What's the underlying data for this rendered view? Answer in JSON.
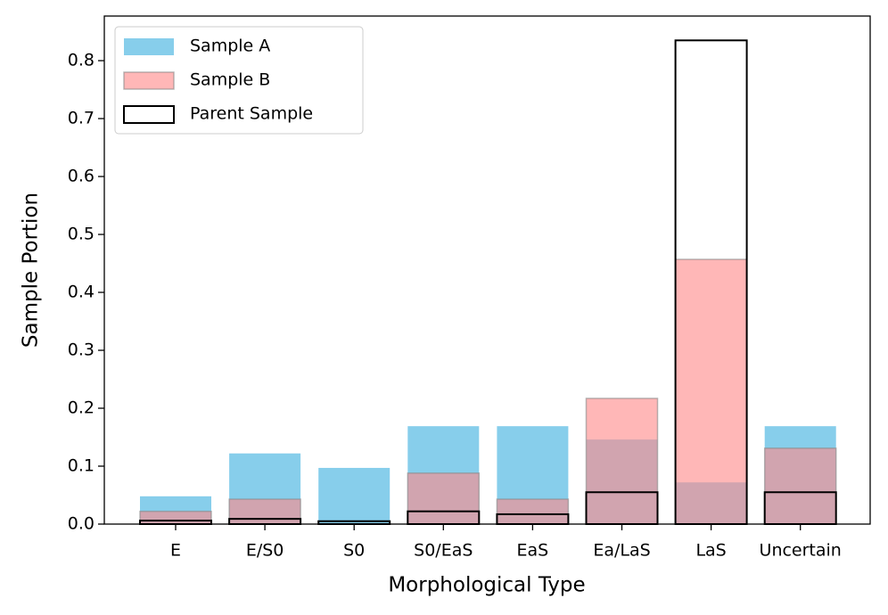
{
  "chart_data": {
    "type": "bar",
    "x_label": "Morphological Type",
    "y_label": "Sample Portion",
    "categories": [
      "E",
      "E/S0",
      "S0",
      "S0/EaS",
      "EaS",
      "Ea/LaS",
      "LaS",
      "Uncertain"
    ],
    "series": [
      {
        "name": "Sample A",
        "color": "#87ceeb",
        "style": "filled",
        "values": [
          0.048,
          0.122,
          0.097,
          0.169,
          0.169,
          0.146,
          0.072,
          0.169
        ]
      },
      {
        "name": "Sample B",
        "color": "#ff8a8a",
        "style": "filled",
        "values": [
          0.022,
          0.043,
          0,
          0.088,
          0.043,
          0.217,
          0.457,
          0.131
        ]
      },
      {
        "name": "Parent Sample",
        "color": "#000000",
        "style": "outline",
        "values": [
          0.006,
          0.009,
          0.005,
          0.022,
          0.017,
          0.055,
          0.835,
          0.055
        ]
      }
    ],
    "ylim": [
      0,
      0.877
    ],
    "yticks": [
      {
        "value": 0,
        "label": "0.0"
      },
      0.1,
      0.2,
      0.3,
      0.4,
      0.5,
      0.6,
      0.7,
      0.8
    ],
    "legend": "upper left"
  }
}
